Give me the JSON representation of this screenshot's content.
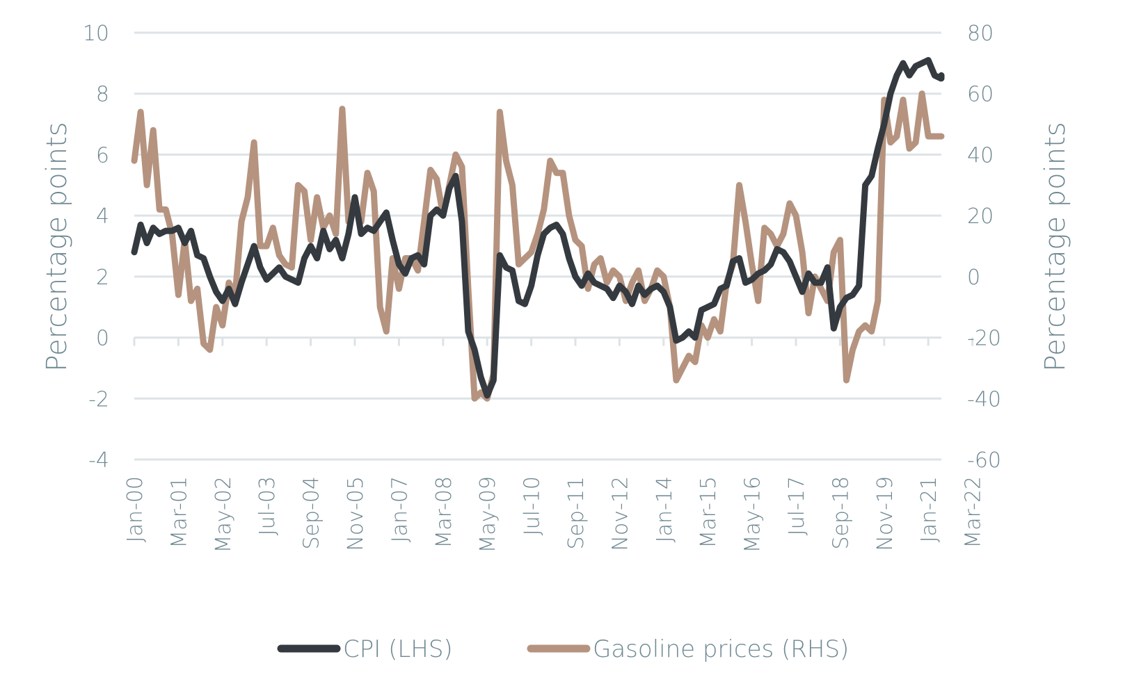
{
  "chart_data": {
    "type": "line",
    "title": "",
    "xlabel": "",
    "ylabel": "Percentage points",
    "ylabel_right": "Percentage points",
    "ylim": [
      -4,
      10
    ],
    "ylim_right": [
      -60,
      80
    ],
    "yticks": [
      10,
      8,
      6,
      4,
      2,
      0,
      -2,
      -4
    ],
    "yticks_right": [
      80,
      60,
      40,
      20,
      0,
      -20,
      -40,
      -60
    ],
    "x_tick_labels": [
      "Jan-00",
      "Mar-01",
      "May-02",
      "Jul-03",
      "Sep-04",
      "Nov-05",
      "Jan-07",
      "Mar-08",
      "May-09",
      "Jul-10",
      "Sep-11",
      "Nov-12",
      "Jan-14",
      "Mar-15",
      "May-16",
      "Jul-17",
      "Sep-18",
      "Nov-19",
      "Jan-21",
      "Mar-22"
    ],
    "grid": true,
    "legend_position": "bottom",
    "x_months_from_jan00": [
      0,
      2,
      4,
      6,
      8,
      10,
      12,
      14,
      16,
      18,
      20,
      22,
      24,
      26,
      28,
      30,
      32,
      34,
      36,
      38,
      40,
      42,
      44,
      46,
      48,
      50,
      52,
      54,
      56,
      58,
      60,
      62,
      64,
      66,
      68,
      70,
      72,
      74,
      76,
      78,
      80,
      82,
      84,
      86,
      88,
      90,
      92,
      94,
      96,
      98,
      100,
      102,
      104,
      106,
      108,
      110,
      112,
      114,
      116,
      118,
      120,
      122,
      124,
      126,
      128,
      130,
      132,
      134,
      136,
      138,
      140,
      142,
      144,
      146,
      148,
      150,
      152,
      154,
      156,
      158,
      160,
      162,
      164,
      166,
      168,
      170,
      172,
      174,
      176,
      178,
      180,
      182,
      184,
      186,
      188,
      190,
      192,
      194,
      196,
      198,
      200,
      202,
      204,
      206,
      208,
      210,
      212,
      214,
      216,
      218,
      220,
      222,
      224,
      226,
      228,
      230,
      232,
      234,
      236,
      238,
      240,
      242,
      244,
      246,
      248,
      250,
      252,
      254,
      256,
      258,
      260,
      262,
      264,
      266,
      268,
      270
    ],
    "series": [
      {
        "name": "CPI (LHS)",
        "axis": "left",
        "color": "#343a3f",
        "values": [
          2.8,
          3.7,
          3.1,
          3.6,
          3.4,
          3.5,
          3.5,
          3.6,
          3.1,
          3.5,
          2.7,
          2.6,
          2.0,
          1.5,
          1.2,
          1.6,
          1.1,
          1.8,
          2.4,
          3.0,
          2.3,
          1.9,
          2.1,
          2.3,
          2.0,
          1.9,
          1.8,
          2.6,
          3.0,
          2.6,
          3.5,
          2.9,
          3.2,
          2.6,
          3.4,
          4.6,
          3.4,
          3.6,
          3.5,
          3.8,
          4.1,
          3.2,
          2.4,
          2.1,
          2.6,
          2.7,
          2.4,
          4.0,
          4.2,
          4.0,
          4.9,
          5.3,
          3.8,
          0.2,
          -0.4,
          -1.3,
          -1.9,
          -1.4,
          2.7,
          2.3,
          2.2,
          1.2,
          1.1,
          1.7,
          2.7,
          3.4,
          3.6,
          3.7,
          3.4,
          2.6,
          2.0,
          1.7,
          2.1,
          1.8,
          1.7,
          1.6,
          1.3,
          1.7,
          1.5,
          1.1,
          1.7,
          1.4,
          1.6,
          1.7,
          1.5,
          1.0,
          -0.1,
          0.0,
          0.2,
          0.0,
          0.9,
          1.0,
          1.1,
          1.6,
          1.7,
          2.5,
          2.6,
          1.8,
          1.9,
          2.1,
          2.2,
          2.4,
          2.9,
          2.8,
          2.5,
          2.0,
          1.5,
          2.1,
          1.8,
          1.8,
          2.3,
          0.3,
          1.0,
          1.3,
          1.4,
          1.7,
          5.0,
          5.3,
          6.2,
          7.0,
          8.0,
          8.6,
          9.0,
          8.6,
          8.9,
          9.0,
          9.1,
          8.6,
          8.5,
          8.6,
          8.5,
          8.6,
          8.6,
          8.6,
          8.6,
          8.5
        ]
      },
      {
        "name": "Gasoline prices (RHS)",
        "axis": "right",
        "color": "#b5937f",
        "values": [
          38,
          54,
          30,
          48,
          22,
          22,
          14,
          -6,
          12,
          -8,
          -4,
          -22,
          -24,
          -10,
          -16,
          -2,
          -6,
          18,
          26,
          44,
          10,
          10,
          16,
          7,
          4,
          3,
          30,
          28,
          12,
          26,
          16,
          20,
          14,
          55,
          18,
          24,
          18,
          34,
          28,
          -10,
          -18,
          6,
          -4,
          6,
          6,
          2,
          18,
          35,
          32,
          20,
          30,
          40,
          36,
          -4,
          -40,
          -38,
          -40,
          -32,
          54,
          38,
          30,
          4,
          6,
          8,
          14,
          22,
          38,
          34,
          34,
          20,
          12,
          10,
          -4,
          4,
          6,
          -2,
          2,
          0,
          -8,
          -2,
          2,
          -8,
          -4,
          2,
          0,
          -10,
          -34,
          -30,
          -26,
          -28,
          -16,
          -20,
          -14,
          -18,
          -2,
          4,
          30,
          18,
          4,
          -8,
          16,
          14,
          10,
          14,
          24,
          20,
          8,
          -12,
          0,
          -4,
          -8,
          8,
          12,
          -34,
          -24,
          -18,
          -16,
          -18,
          -8,
          58,
          44,
          46,
          58,
          42,
          44,
          60,
          46,
          46,
          46,
          46,
          46,
          46,
          46,
          46
        ]
      }
    ]
  },
  "axes": {
    "left_title": "Percentage points",
    "right_title": "Percentage points"
  },
  "legend": {
    "items": [
      {
        "label": "CPI (LHS)",
        "color": "#343a3f"
      },
      {
        "label": "Gasoline prices (RHS)",
        "color": "#b5937f"
      }
    ]
  },
  "colors": {
    "grid": "#dde3e6",
    "text": "#6e8791",
    "cpi": "#343a3f",
    "gasoline": "#b5937f"
  }
}
